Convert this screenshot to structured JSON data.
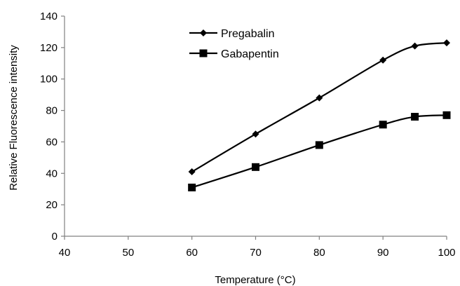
{
  "chart_data": {
    "type": "line",
    "title": "",
    "xlabel": "Temperature (°C)",
    "ylabel": "Relative Fluorescence intensity",
    "xlim": [
      40,
      100
    ],
    "ylim": [
      0,
      140
    ],
    "xticks": [
      40,
      50,
      60,
      70,
      80,
      90,
      100
    ],
    "yticks": [
      0,
      20,
      40,
      60,
      80,
      100,
      120,
      140
    ],
    "grid": false,
    "legend_position": "top-center",
    "series": [
      {
        "name": "Pregabalin",
        "marker": "diamond",
        "color": "#000000",
        "x": [
          60,
          70,
          80,
          90,
          95,
          100
        ],
        "y": [
          41,
          65,
          88,
          112,
          121,
          123
        ]
      },
      {
        "name": "Gabapentin",
        "marker": "square",
        "color": "#000000",
        "x": [
          60,
          70,
          80,
          90,
          95,
          100
        ],
        "y": [
          31,
          44,
          58,
          71,
          76,
          77
        ]
      }
    ]
  }
}
